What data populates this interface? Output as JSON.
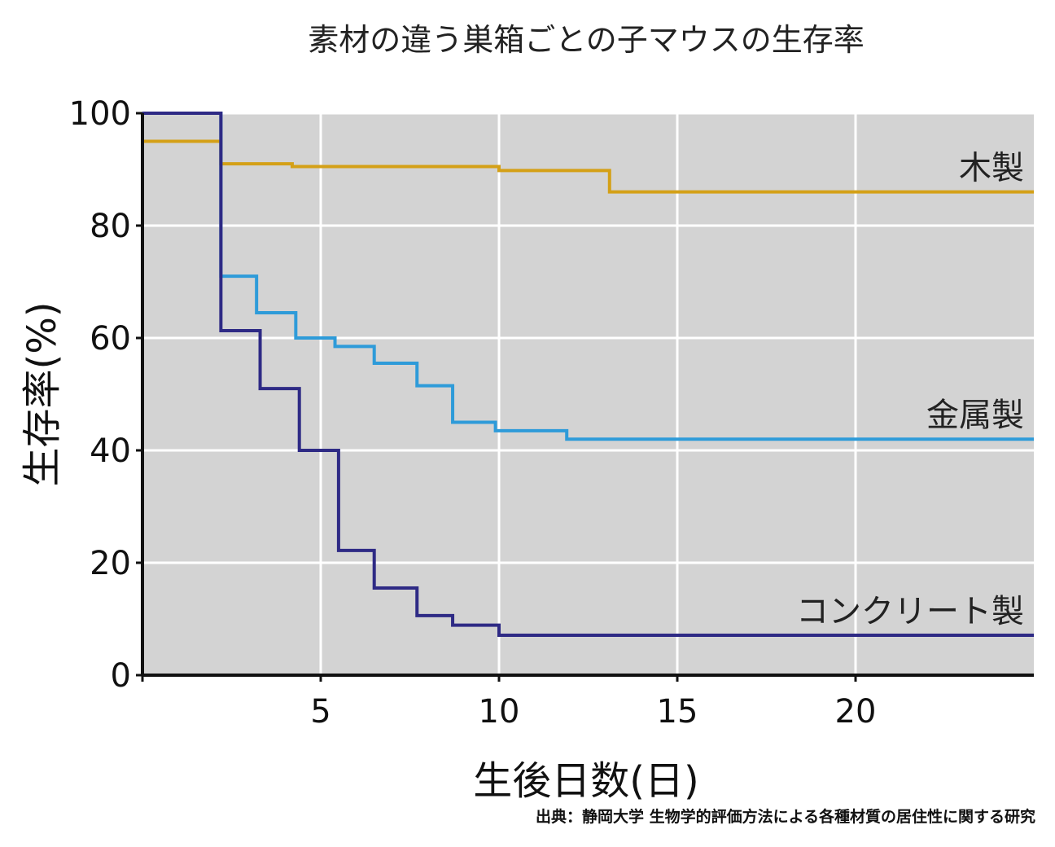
{
  "chart_data": {
    "type": "line",
    "title": "素材の違う巣箱ごとの子マウスの生存率",
    "xlabel": "生後日数(日)",
    "ylabel": "生存率(%)",
    "xlim": [
      0,
      25
    ],
    "ylim": [
      0,
      100
    ],
    "xticks": [
      5,
      10,
      15,
      20
    ],
    "yticks": [
      0,
      20,
      40,
      60,
      80,
      100
    ],
    "grid": true,
    "step": true,
    "series": [
      {
        "name": "木製",
        "color": "#D4A017",
        "x": [
          0,
          2.2,
          4.2,
          10,
          13.1,
          25
        ],
        "y": [
          95,
          91,
          90.5,
          89.8,
          86,
          86
        ]
      },
      {
        "name": "金属製",
        "color": "#2E9BD9",
        "x": [
          0,
          2.2,
          3.2,
          4.3,
          5.4,
          6.5,
          7.7,
          8.7,
          9.9,
          11.9,
          25
        ],
        "y": [
          100,
          71,
          64.5,
          60,
          58.5,
          55.5,
          51.5,
          45,
          43.5,
          42,
          42
        ]
      },
      {
        "name": "コンクリート製",
        "color": "#2E2A85",
        "x": [
          0,
          2.2,
          3.3,
          4.4,
          5.5,
          6.5,
          7.7,
          8.7,
          10,
          25
        ],
        "y": [
          100,
          61.3,
          51,
          40,
          22.2,
          15.5,
          10.6,
          8.9,
          7.1,
          7.1
        ]
      }
    ]
  },
  "source": "出典：静岡大学 生物学的評価方法による各種材質の居住性に関する研究"
}
